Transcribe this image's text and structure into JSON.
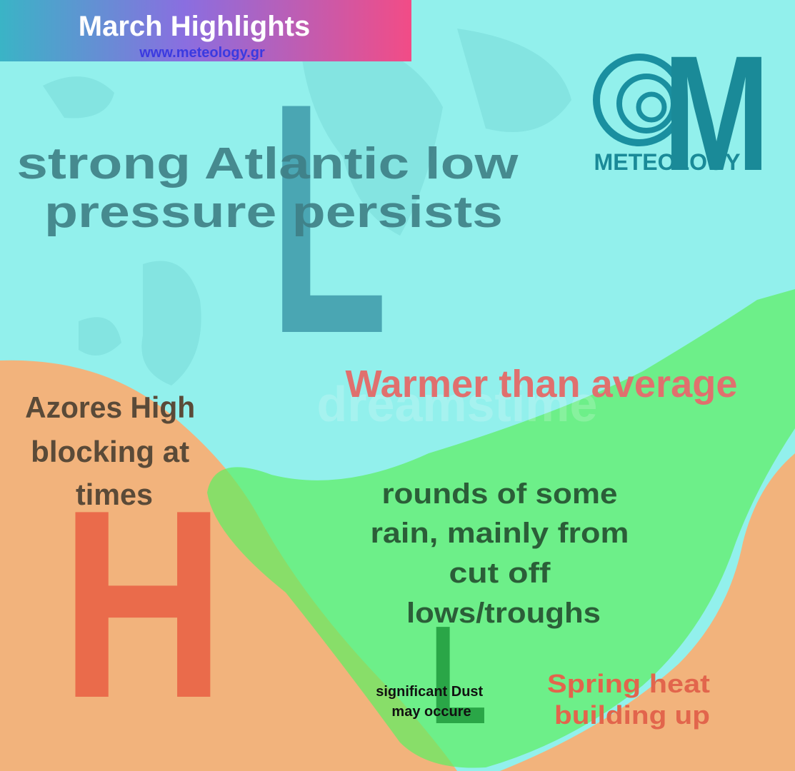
{
  "header": {
    "title": "March Highlights",
    "url": "www.meteology.gr"
  },
  "logo": {
    "letter": "M",
    "name": "METEOLOGY"
  },
  "watermark": "dreamstime",
  "pressure_systems": [
    {
      "label": "L"
    },
    {
      "label": "H"
    },
    {
      "label": "L"
    }
  ],
  "annotations": [
    {
      "lines": [
        "strong Atlantic low",
        "pressure persists"
      ]
    },
    {
      "lines": [
        "Warmer than average"
      ]
    },
    {
      "lines": [
        "Azores High",
        "blocking at",
        "times"
      ]
    },
    {
      "lines": [
        "rounds of some",
        "rain, mainly from",
        "cut off",
        "lows/troughs"
      ]
    },
    {
      "lines": [
        "significant Dust",
        "may occure"
      ]
    },
    {
      "lines": [
        "Spring heat",
        "building up"
      ]
    }
  ]
}
